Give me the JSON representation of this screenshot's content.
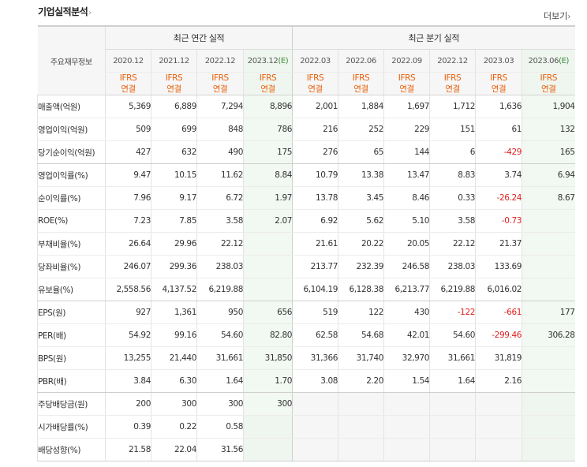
{
  "header": {
    "title": "기업실적분석",
    "more_label": "더보기"
  },
  "table": {
    "label_header": "주요재무정보",
    "annual_header": "최근 연간 실적",
    "quarter_header": "최근 분기 실적",
    "periods": [
      {
        "label": "2020.12",
        "est": false
      },
      {
        "label": "2021.12",
        "est": false
      },
      {
        "label": "2022.12",
        "est": false
      },
      {
        "label": "2023.12",
        "est": true
      },
      {
        "label": "2022.03",
        "est": false
      },
      {
        "label": "2022.06",
        "est": false
      },
      {
        "label": "2022.09",
        "est": false
      },
      {
        "label": "2022.12",
        "est": false
      },
      {
        "label": "2023.03",
        "est": false
      },
      {
        "label": "2023.06",
        "est": true
      }
    ],
    "est_mark": "(E)",
    "accounting_line1": "IFRS",
    "accounting_line2": "연결",
    "rows": [
      {
        "name": "매출액(억원)",
        "values": [
          "5,369",
          "6,889",
          "7,294",
          "8,896",
          "2,001",
          "1,884",
          "1,697",
          "1,712",
          "1,636",
          "1,904"
        ]
      },
      {
        "name": "영업이익(억원)",
        "values": [
          "509",
          "699",
          "848",
          "786",
          "216",
          "252",
          "229",
          "151",
          "61",
          "132"
        ]
      },
      {
        "name": "당기순이익(억원)",
        "values": [
          "427",
          "632",
          "490",
          "175",
          "276",
          "65",
          "144",
          "6",
          "-429",
          "165"
        ]
      },
      {
        "name": "영업이익률(%)",
        "values": [
          "9.47",
          "10.15",
          "11.62",
          "8.84",
          "10.79",
          "13.38",
          "13.47",
          "8.83",
          "3.74",
          "6.94"
        ]
      },
      {
        "name": "순이익률(%)",
        "values": [
          "7.96",
          "9.17",
          "6.72",
          "1.97",
          "13.78",
          "3.45",
          "8.46",
          "0.33",
          "-26.24",
          "8.67"
        ]
      },
      {
        "name": "ROE(%)",
        "values": [
          "7.23",
          "7.85",
          "3.58",
          "2.07",
          "6.92",
          "5.62",
          "5.10",
          "3.58",
          "-0.73",
          ""
        ]
      },
      {
        "name": "부채비율(%)",
        "values": [
          "26.64",
          "29.96",
          "22.12",
          "",
          "21.61",
          "20.22",
          "20.05",
          "22.12",
          "21.37",
          ""
        ]
      },
      {
        "name": "당좌비율(%)",
        "values": [
          "246.07",
          "299.36",
          "238.03",
          "",
          "213.77",
          "232.39",
          "246.58",
          "238.03",
          "133.69",
          ""
        ]
      },
      {
        "name": "유보율(%)",
        "values": [
          "2,558.56",
          "4,137.52",
          "6,219.88",
          "",
          "6,104.19",
          "6,128.38",
          "6,213.77",
          "6,219.88",
          "6,016.02",
          ""
        ]
      },
      {
        "name": "EPS(원)",
        "values": [
          "927",
          "1,361",
          "950",
          "656",
          "519",
          "122",
          "430",
          "-122",
          "-661",
          "177"
        ]
      },
      {
        "name": "PER(배)",
        "values": [
          "54.92",
          "99.16",
          "54.60",
          "82.80",
          "62.58",
          "54.68",
          "42.01",
          "54.60",
          "-299.46",
          "306.28"
        ]
      },
      {
        "name": "BPS(원)",
        "values": [
          "13,255",
          "21,440",
          "31,661",
          "31,850",
          "31,366",
          "31,740",
          "32,970",
          "31,661",
          "31,819",
          ""
        ]
      },
      {
        "name": "PBR(배)",
        "values": [
          "3.84",
          "6.30",
          "1.64",
          "1.70",
          "3.08",
          "2.20",
          "1.54",
          "1.64",
          "2.16",
          ""
        ]
      },
      {
        "name": "주당배당금(원)",
        "values": [
          "200",
          "300",
          "300",
          "300",
          "",
          "",
          "",
          "",
          "",
          ""
        ]
      },
      {
        "name": "시가배당률(%)",
        "values": [
          "0.39",
          "0.22",
          "0.58",
          "",
          "",
          "",
          "",
          "",
          "",
          ""
        ]
      },
      {
        "name": "배당성향(%)",
        "values": [
          "21.58",
          "22.04",
          "31.56",
          "",
          "",
          "",
          "",
          "",
          "",
          ""
        ]
      }
    ]
  },
  "colors": {
    "negative": "#e02020",
    "ifrs": "#e8600a",
    "estimate_mark": "#3b8a3b",
    "header_bg": "#f6f6f6",
    "estimate_bg": "#f2f8f2"
  }
}
